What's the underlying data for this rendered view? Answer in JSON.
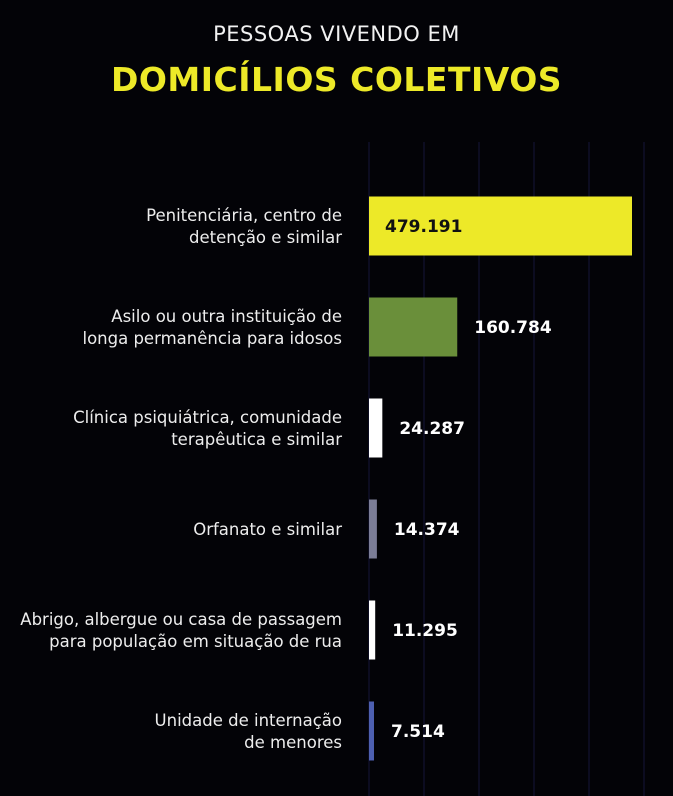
{
  "header": {
    "subtitle": "PESSOAS VIVENDO EM",
    "title": "DOMICÍLIOS COLETIVOS"
  },
  "chart_data": {
    "type": "bar",
    "orientation": "horizontal",
    "title": "PESSOAS VIVENDO EM DOMICÍLIOS COLETIVOS",
    "xlabel": "",
    "ylabel": "",
    "xlim": [
      0,
      500000
    ],
    "grid": true,
    "legend": "none",
    "categories": [
      [
        "Penitenciária, centro de",
        "detenção e similar"
      ],
      [
        "Asilo ou outra instituição de",
        "longa permanência para idosos"
      ],
      [
        "Clínica psiquiátrica, comunidade",
        "terapêutica e similar"
      ],
      [
        "Orfanato e similar"
      ],
      [
        "Abrigo, albergue ou casa de passagem",
        "para população em situação de rua"
      ],
      [
        "Unidade de internação",
        "de menores"
      ]
    ],
    "values": [
      479191,
      160784,
      24287,
      14374,
      11295,
      7514
    ],
    "value_labels": [
      "479.191",
      "160.784",
      "24.287",
      "14.374",
      "11.295",
      "7.514"
    ],
    "colors": [
      "#ede928",
      "#6a8f3a",
      "#ffffff",
      "#7b7d96",
      "#ffffff",
      "#4d5fb0"
    ]
  }
}
